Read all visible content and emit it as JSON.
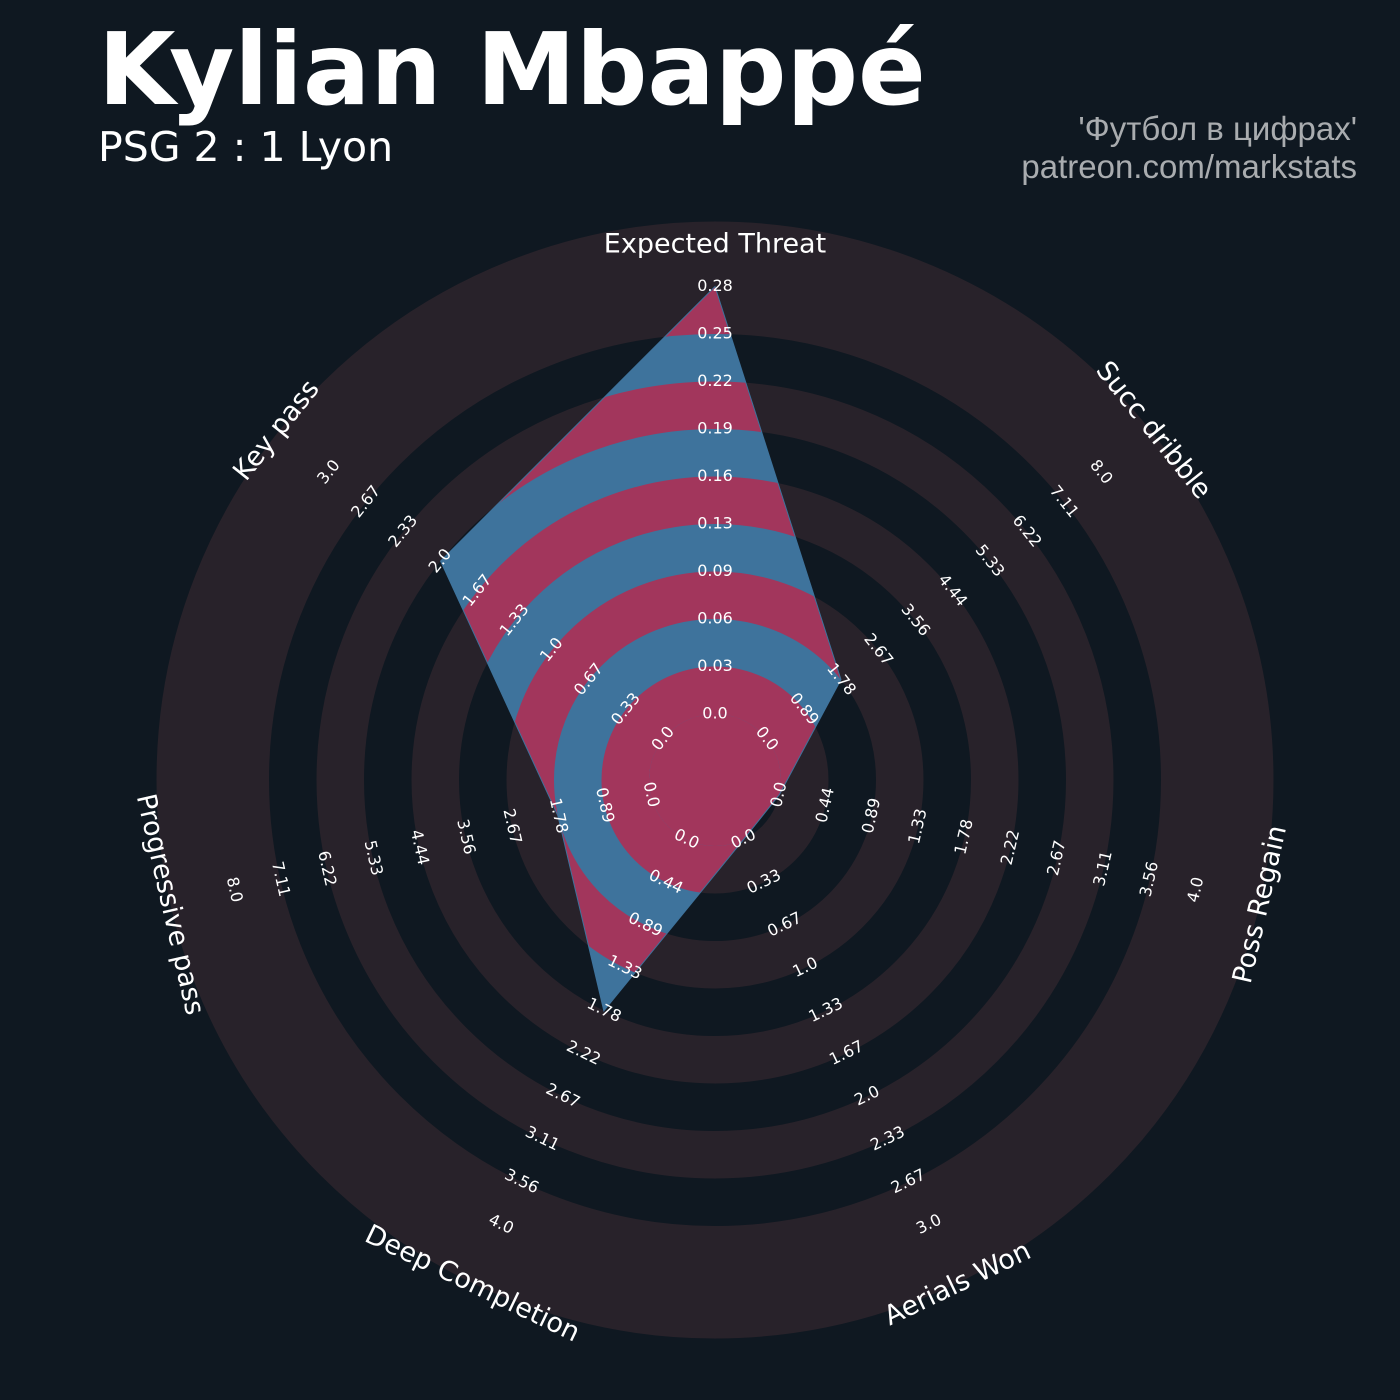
{
  "header": {
    "title": "Kylian Mbappé",
    "subtitle": "PSG 2 : 1 Lyon",
    "credit_line1": "'Футбол в цифрах'",
    "credit_line2": "patreon.com/markstats"
  },
  "colors": {
    "background": "#0f1821",
    "ring": "#28222a",
    "player_fill_blue": "#3e739c",
    "player_fill_red": "#a2365c",
    "label": "#ffffff"
  },
  "chart_data": {
    "type": "radar",
    "params": [
      {
        "name": "Expected Threat",
        "min": 0.0,
        "max": 0.28,
        "value": 0.28,
        "ticks": [
          "0.0",
          "0.03",
          "0.06",
          "0.09",
          "0.13",
          "0.16",
          "0.19",
          "0.22",
          "0.25",
          "0.28"
        ]
      },
      {
        "name": "Succ dribble",
        "min": 0.0,
        "max": 8.0,
        "value": 1.78,
        "ticks": [
          "0.0",
          "0.89",
          "1.78",
          "2.67",
          "3.56",
          "4.44",
          "5.33",
          "6.22",
          "7.11",
          "8.0"
        ]
      },
      {
        "name": "Poss Regain",
        "min": 0.0,
        "max": 4.0,
        "value": 0.0,
        "ticks": [
          "0.0",
          "0.44",
          "0.89",
          "1.33",
          "1.78",
          "2.22",
          "2.67",
          "3.11",
          "3.56",
          "4.0"
        ]
      },
      {
        "name": "Aerials Won",
        "min": 0.0,
        "max": 3.0,
        "value": 0.0,
        "ticks": [
          "0.0",
          "0.33",
          "0.67",
          "1.0",
          "1.33",
          "1.67",
          "2.0",
          "2.33",
          "2.67",
          "3.0"
        ]
      },
      {
        "name": "Deep Completion",
        "min": 0.0,
        "max": 4.0,
        "value": 1.78,
        "ticks": [
          "0.0",
          "0.44",
          "0.89",
          "1.33",
          "1.78",
          "2.22",
          "2.67",
          "3.11",
          "3.56",
          "4.0"
        ]
      },
      {
        "name": "Progressive pass",
        "min": 0.0,
        "max": 8.0,
        "value": 1.78,
        "ticks": [
          "0.0",
          "0.89",
          "1.78",
          "2.67",
          "3.56",
          "4.44",
          "5.33",
          "6.22",
          "7.11",
          "8.0"
        ]
      },
      {
        "name": "Key pass",
        "min": 0.0,
        "max": 3.0,
        "value": 2.0,
        "ticks": [
          "0.0",
          "0.33",
          "0.67",
          "1.0",
          "1.33",
          "1.67",
          "2.0",
          "2.33",
          "2.67",
          "3.0"
        ]
      }
    ]
  }
}
